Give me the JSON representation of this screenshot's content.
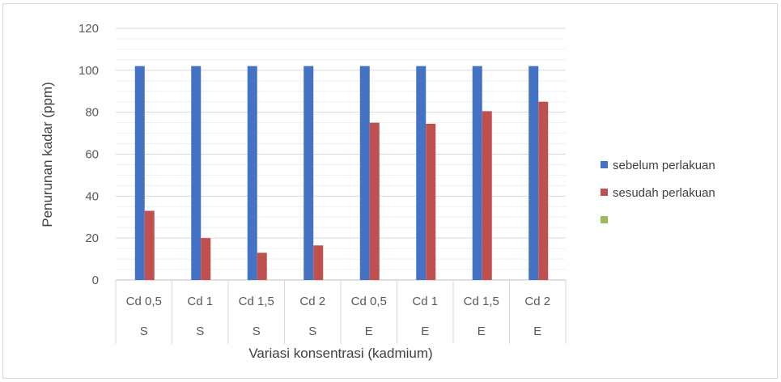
{
  "chart_data": {
    "type": "bar",
    "title": "",
    "xlabel": "Variasi konsentrasi (kadmium)",
    "ylabel": "Penurunan kadar (ppm)",
    "ylim": [
      0,
      120
    ],
    "yticks": [
      0,
      20,
      40,
      60,
      80,
      100,
      120
    ],
    "grid": true,
    "legend_position": "right",
    "categories": [
      {
        "label": "Cd 0,5",
        "group": "S"
      },
      {
        "label": "Cd 1",
        "group": "S"
      },
      {
        "label": "Cd 1,5",
        "group": "S"
      },
      {
        "label": "Cd 2",
        "group": "S"
      },
      {
        "label": "Cd 0,5",
        "group": "E"
      },
      {
        "label": "Cd 1",
        "group": "E"
      },
      {
        "label": "Cd 1,5",
        "group": "E"
      },
      {
        "label": "Cd 2",
        "group": "E"
      }
    ],
    "series": [
      {
        "name": "sebelum perlakuan",
        "color": "#4472c4",
        "values": [
          102,
          102,
          102,
          102,
          102,
          102,
          102,
          102
        ]
      },
      {
        "name": "sesudah perlakuan",
        "color": "#c0504d",
        "values": [
          33,
          20,
          13,
          16.5,
          75,
          74.5,
          80.5,
          85
        ]
      },
      {
        "name": "",
        "color": "#9bbb59",
        "values": [
          0,
          0,
          0,
          0,
          0,
          0,
          0,
          0
        ]
      }
    ]
  }
}
